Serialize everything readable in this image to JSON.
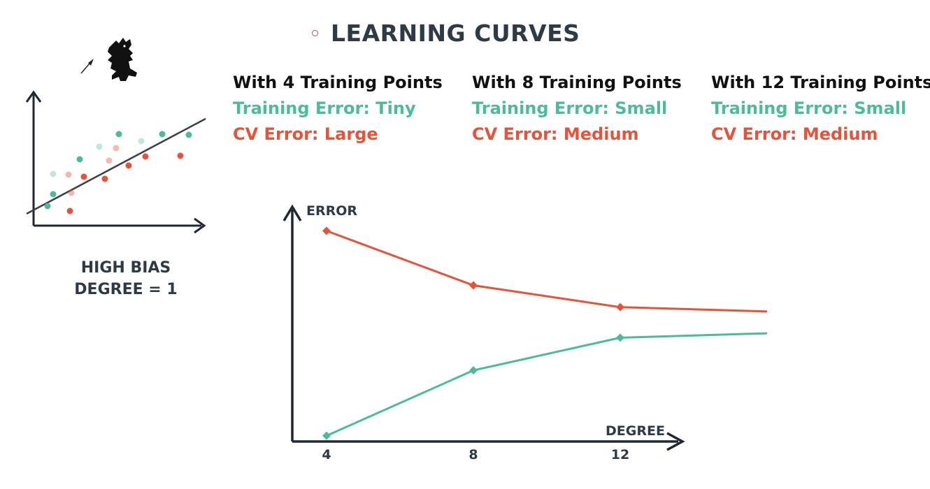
{
  "title": "LEARNING CURVES",
  "columns": [
    {
      "heading": "With 4 Training Points",
      "training": "Training Error: Tiny",
      "cv": "CV Error: Large"
    },
    {
      "heading": "With 8 Training Points",
      "training": "Training Error: Small",
      "cv": "CV Error: Medium"
    },
    {
      "heading": "With 12 Training Points",
      "training": "Training Error: Small",
      "cv": "CV Error: Medium"
    }
  ],
  "bias_panel": {
    "line1": "HIGH BIAS",
    "line2": "DEGREE = 1"
  },
  "colors": {
    "training": "#4dbb9b",
    "cv": "#e4533a",
    "axis": "#1f2733"
  },
  "chart_data": {
    "type": "line",
    "xlabel": "DEGREE",
    "ylabel": "ERROR",
    "x_ticks": [
      "4",
      "8",
      "12"
    ],
    "xlim": [
      4,
      16
    ],
    "ylim": [
      0,
      10
    ],
    "series": [
      {
        "key": "cv",
        "x": [
          4,
          8,
          12,
          16
        ],
        "y": [
          9.6,
          7.1,
          6.1,
          5.9
        ],
        "markers": [
          true,
          true,
          true,
          false
        ]
      },
      {
        "key": "training",
        "x": [
          4,
          8,
          12,
          16
        ],
        "y": [
          0.2,
          3.2,
          4.7,
          4.9
        ],
        "markers": [
          true,
          true,
          true,
          false
        ]
      }
    ]
  }
}
